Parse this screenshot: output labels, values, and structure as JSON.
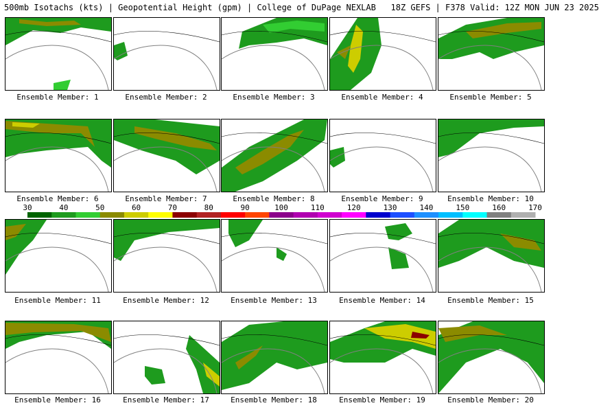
{
  "header": {
    "title": "500mb Isotachs (kts) | Geopotential Height (gpm) | College of DuPage NEXLAB   18Z GEFS | F378 Valid: 12Z MON JUN 23 2025"
  },
  "panels": [
    {
      "label": "Ensemble Member: 1"
    },
    {
      "label": "Ensemble Member: 2"
    },
    {
      "label": "Ensemble Member: 3"
    },
    {
      "label": "Ensemble Member: 4"
    },
    {
      "label": "Ensemble Member: 5"
    },
    {
      "label": "Ensemble Member: 6"
    },
    {
      "label": "Ensemble Member: 7"
    },
    {
      "label": "Ensemble Member: 8"
    },
    {
      "label": "Ensemble Member: 9"
    },
    {
      "label": "Ensemble Member: 10"
    },
    {
      "label": "Ensemble Member: 11"
    },
    {
      "label": "Ensemble Member: 12"
    },
    {
      "label": "Ensemble Member: 13"
    },
    {
      "label": "Ensemble Member: 14"
    },
    {
      "label": "Ensemble Member: 15"
    },
    {
      "label": "Ensemble Member: 16"
    },
    {
      "label": "Ensemble Member: 17"
    },
    {
      "label": "Ensemble Member: 18"
    },
    {
      "label": "Ensemble Member: 19"
    },
    {
      "label": "Ensemble Member: 20"
    }
  ],
  "colorbar": {
    "ticks": [
      "30",
      "40",
      "50",
      "60",
      "70",
      "80",
      "90",
      "100",
      "110",
      "120",
      "130",
      "140",
      "150",
      "160",
      "170"
    ],
    "colors": [
      "#006400",
      "#1e9b1e",
      "#32cd32",
      "#8b8b00",
      "#cdcd00",
      "#ffff00",
      "#8b0000",
      "#b22222",
      "#ff0000",
      "#ff4500",
      "#8b008b",
      "#b000b0",
      "#d000d0",
      "#ff00ff",
      "#0000cd",
      "#1e50ff",
      "#1e90ff",
      "#00bfff",
      "#00ffff",
      "#808080",
      "#b0b0b0"
    ]
  }
}
